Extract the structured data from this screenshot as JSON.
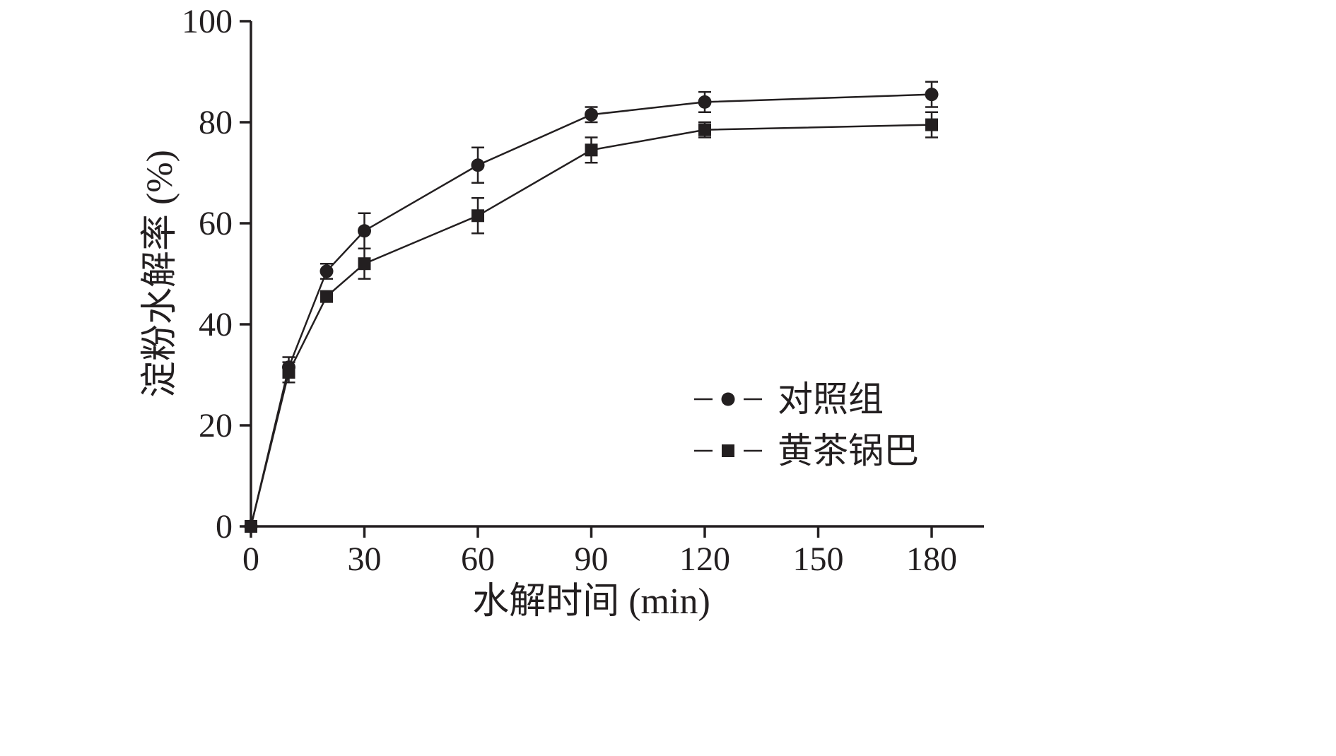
{
  "chart_data": {
    "type": "line",
    "title": "",
    "xlabel": "水解时间 (min)",
    "ylabel": "淀粉水解率 (%)",
    "xlim": [
      0,
      180
    ],
    "ylim": [
      0,
      100
    ],
    "xticks": [
      0,
      30,
      60,
      90,
      120,
      150,
      180
    ],
    "yticks": [
      0,
      20,
      40,
      60,
      80,
      100
    ],
    "grid": false,
    "legend_position": "inside-right",
    "color": "#231f20",
    "x": [
      0,
      10,
      20,
      30,
      60,
      90,
      120,
      180
    ],
    "series": [
      {
        "name": "对照组",
        "marker": "circle",
        "values": [
          0,
          31.5,
          50.5,
          58.5,
          71.5,
          81.5,
          84,
          85.5
        ],
        "errors": [
          0,
          2,
          1.5,
          3.5,
          3.5,
          1.5,
          2,
          2.5
        ]
      },
      {
        "name": "黄茶锅巴",
        "marker": "square",
        "values": [
          0,
          30.5,
          45.5,
          52,
          61.5,
          74.5,
          78.5,
          79.5
        ],
        "errors": [
          0,
          2,
          1,
          3,
          3.5,
          2.5,
          1.5,
          2.5
        ]
      }
    ]
  }
}
